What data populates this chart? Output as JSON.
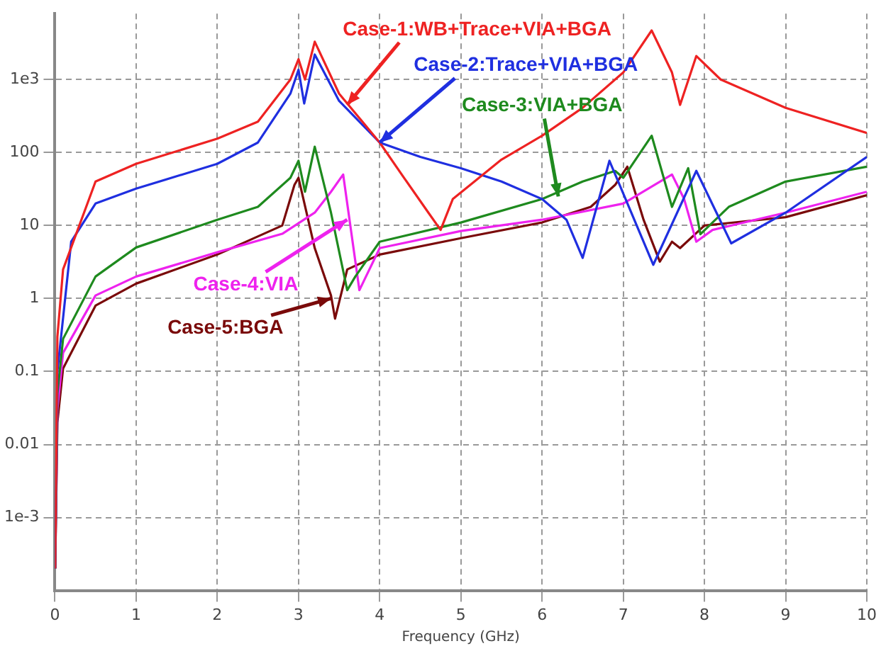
{
  "chart_data": {
    "type": "line",
    "xlabel": "Frequency (GHz)",
    "xlim": [
      0,
      10
    ],
    "xticks": [
      0,
      1,
      2,
      3,
      4,
      5,
      6,
      7,
      8,
      9,
      10
    ],
    "ylim": [
      0.0001,
      8000
    ],
    "log": "y",
    "grid": true,
    "legend": false,
    "marker": "none",
    "line_style": "solid",
    "yticks": [
      {
        "value": 0.001,
        "label": "1e-3"
      },
      0.01,
      0.1,
      1,
      10,
      100,
      {
        "value": 1000,
        "label": "1e3"
      }
    ],
    "series": [
      {
        "color": "#ee2222",
        "x": [
          0.003,
          0.03,
          0.1,
          0.5,
          1,
          2,
          2.5,
          2.9,
          3.0,
          3.08,
          3.2,
          3.5,
          4,
          4.3,
          4.6,
          4.75,
          4.9,
          5.5,
          6,
          6.5,
          7,
          7.35,
          7.6,
          7.7,
          7.9,
          8.2,
          9,
          10
        ],
        "values": [
          0.0002,
          0.3,
          2.5,
          40,
          70,
          155,
          265,
          1000,
          1900,
          1000,
          3300,
          640,
          137,
          45,
          15,
          8.7,
          23,
          80,
          170,
          410,
          1250,
          4700,
          1250,
          450,
          2100,
          1000,
          410,
          185
        ]
      },
      {
        "color": "#1f2fe0",
        "x": [
          0.003,
          0.03,
          0.2,
          0.5,
          1,
          2,
          2.5,
          2.9,
          3.0,
          3.07,
          3.2,
          3.5,
          4,
          4.5,
          5,
          5.5,
          6,
          6.3,
          6.5,
          6.83,
          7.37,
          7.9,
          8.33,
          9,
          10
        ],
        "values": [
          0.0002,
          0.1,
          6,
          20,
          32,
          70,
          137,
          640,
          1360,
          470,
          2200,
          510,
          137,
          87,
          61,
          40,
          23,
          12,
          3.6,
          77,
          2.9,
          56,
          5.7,
          15,
          87
        ]
      },
      {
        "color": "#1e8a1e",
        "x": [
          0.003,
          0.03,
          0.1,
          0.5,
          1,
          2,
          2.5,
          2.9,
          3.0,
          3.08,
          3.2,
          3.4,
          3.6,
          3.7,
          4,
          5,
          6,
          6.5,
          6.9,
          7.0,
          7.35,
          7.6,
          7.8,
          7.95,
          8.3,
          9,
          10
        ],
        "values": [
          0.0002,
          0.05,
          0.28,
          2,
          5,
          12,
          18,
          45,
          77,
          29,
          120,
          15,
          1.3,
          2,
          6,
          11,
          23,
          40,
          56,
          45,
          170,
          18,
          61,
          7.6,
          18,
          40,
          64
        ]
      },
      {
        "color": "#ee22ee",
        "x": [
          0.003,
          0.03,
          0.1,
          0.5,
          1,
          2,
          2.8,
          3.2,
          3.4,
          3.55,
          3.75,
          4,
          5,
          6,
          7,
          7.6,
          7.75,
          7.9,
          8.1,
          9,
          10
        ],
        "values": [
          0.0002,
          0.03,
          0.18,
          1.1,
          2,
          4.3,
          7.7,
          15,
          29,
          50,
          1.3,
          4.9,
          8.4,
          12,
          20,
          50,
          23,
          6,
          8.7,
          15,
          29
        ]
      },
      {
        "color": "#7a0a0a",
        "x": [
          0.003,
          0.03,
          0.1,
          0.5,
          1,
          2,
          2.8,
          2.95,
          3.0,
          3.2,
          3.4,
          3.45,
          3.6,
          4,
          5,
          6,
          6.6,
          6.9,
          7.05,
          7.25,
          7.45,
          7.6,
          7.7,
          8,
          9,
          10
        ],
        "values": [
          0.0002,
          0.02,
          0.11,
          0.8,
          1.6,
          4,
          10,
          36,
          45,
          4.9,
          1.1,
          0.53,
          2.5,
          4,
          6.7,
          11,
          18,
          36,
          64,
          12,
          3.2,
          6,
          4.9,
          10,
          13,
          26
        ]
      }
    ],
    "annotations": [
      {
        "text": "Case-1:WB+Trace+VIA+BGA",
        "x": 3.6,
        "y": 450
      },
      {
        "text": "Case-2:Trace+VIA+BGA",
        "x": 4.0,
        "y": 137
      },
      {
        "text": "Case-3:VIA+BGA",
        "x": 6.2,
        "y": 25
      },
      {
        "text": "Case-4:VIA",
        "x": 3.6,
        "y": 12
      },
      {
        "text": "Case-5:BGA",
        "x": 3.4,
        "y": 1
      }
    ]
  }
}
